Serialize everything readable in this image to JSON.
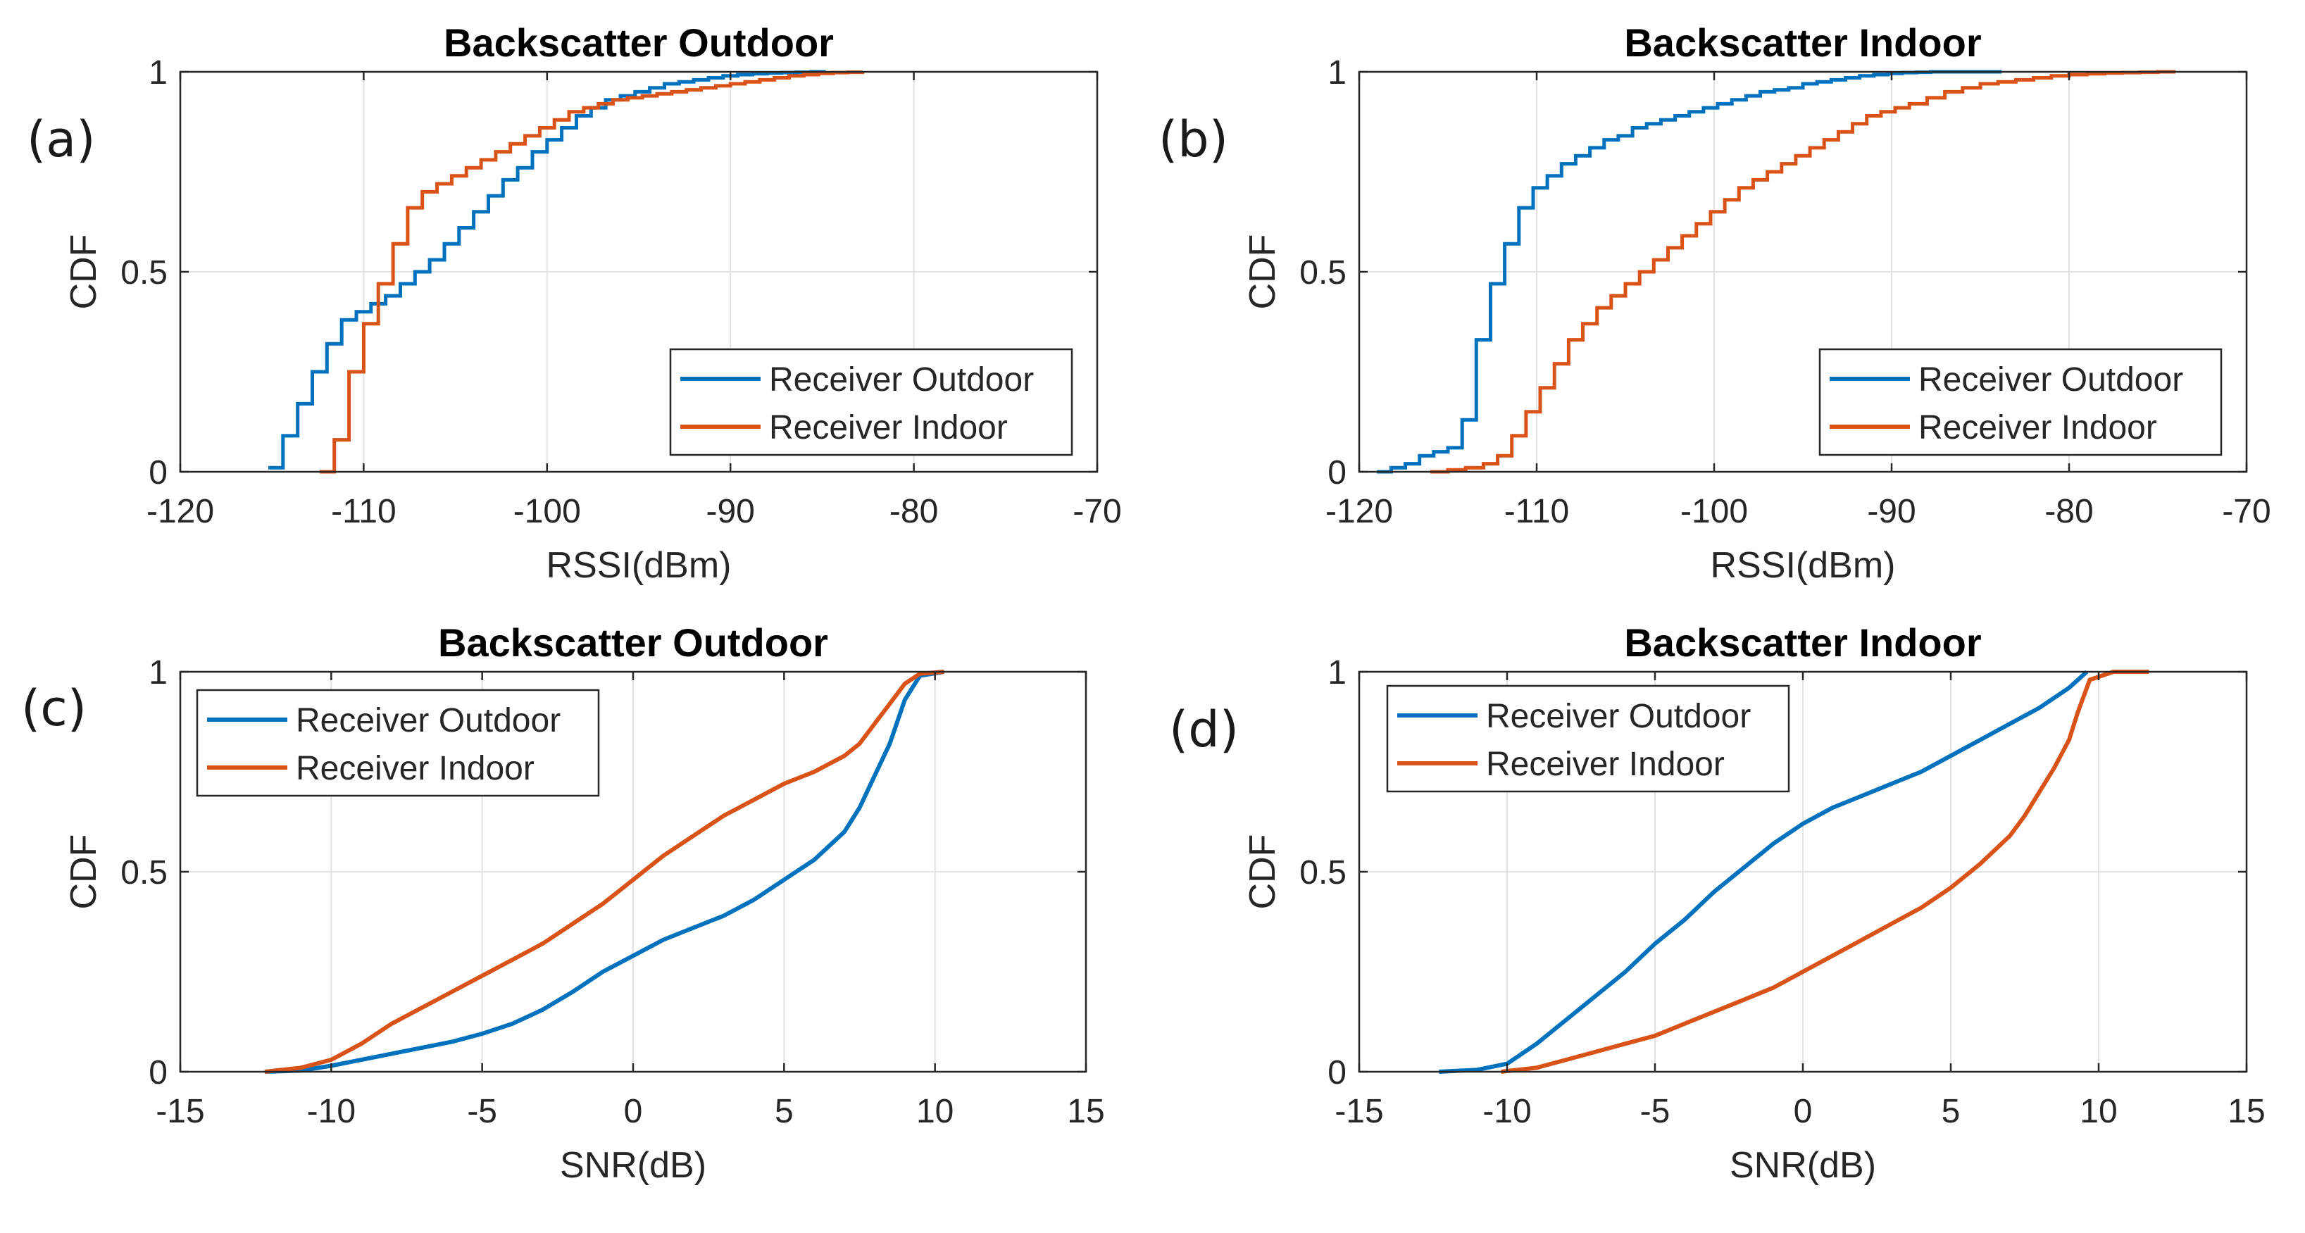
{
  "colors": {
    "outdoor": "#0072BD",
    "indoor": "#D95319"
  },
  "chart_data": [
    {
      "type": "line",
      "panel": "(a)",
      "title": "Backscatter Outdoor",
      "xlabel": "RSSI(dBm)",
      "ylabel": "CDF",
      "xlim": [
        -120,
        -70
      ],
      "ylim": [
        0,
        1
      ],
      "xticks": [
        -120,
        -110,
        -100,
        -90,
        -80,
        -70
      ],
      "xtick_labels": [
        "-120",
        "-110",
        "-100",
        "-90",
        "-80",
        "-70"
      ],
      "yticks": [
        0,
        0.5,
        1
      ],
      "ytick_labels": [
        "0",
        "0.5",
        "1"
      ],
      "legend": "bottom-right",
      "series": [
        {
          "name": "Receiver Outdoor",
          "color_key": "outdoor",
          "step": true,
          "x": [
            -115.2,
            -114.4,
            -113.6,
            -112.8,
            -112,
            -111.2,
            -110.4,
            -109.6,
            -108.8,
            -108,
            -107.2,
            -106.4,
            -105.6,
            -104.8,
            -104,
            -103.2,
            -102.4,
            -101.6,
            -100.8,
            -100,
            -99.2,
            -98.4,
            -97.6,
            -96.8,
            -96,
            -95.2,
            -94.4,
            -93.6,
            -92.8,
            -92,
            -91.2,
            -90.4,
            -89.6,
            -88.8,
            -88,
            -87.2,
            -86.4,
            -85.6,
            -84.8
          ],
          "y": [
            0.01,
            0.09,
            0.17,
            0.25,
            0.32,
            0.38,
            0.4,
            0.42,
            0.44,
            0.47,
            0.5,
            0.53,
            0.57,
            0.61,
            0.65,
            0.69,
            0.73,
            0.76,
            0.8,
            0.83,
            0.86,
            0.89,
            0.91,
            0.93,
            0.94,
            0.95,
            0.96,
            0.97,
            0.975,
            0.98,
            0.985,
            0.99,
            0.993,
            0.995,
            0.997,
            0.998,
            0.999,
            1.0,
            1.0
          ]
        },
        {
          "name": "Receiver Indoor",
          "color_key": "indoor",
          "step": true,
          "x": [
            -112.4,
            -111.6,
            -110.8,
            -110,
            -109.2,
            -108.4,
            -107.6,
            -106.8,
            -106,
            -105.2,
            -104.4,
            -103.6,
            -102.8,
            -102,
            -101.2,
            -100.4,
            -99.6,
            -98.8,
            -98,
            -97.2,
            -96.4,
            -95.6,
            -94.8,
            -94,
            -93.2,
            -92.4,
            -91.6,
            -90.8,
            -90,
            -89.2,
            -88.4,
            -87.6,
            -86.8,
            -86,
            -85.2,
            -84.4,
            -83.6,
            -82.8
          ],
          "y": [
            0.0,
            0.08,
            0.25,
            0.37,
            0.47,
            0.57,
            0.66,
            0.7,
            0.72,
            0.74,
            0.76,
            0.78,
            0.8,
            0.82,
            0.84,
            0.86,
            0.88,
            0.9,
            0.91,
            0.92,
            0.93,
            0.935,
            0.94,
            0.945,
            0.95,
            0.955,
            0.96,
            0.965,
            0.97,
            0.975,
            0.98,
            0.985,
            0.99,
            0.993,
            0.996,
            0.998,
            0.999,
            1.0
          ]
        }
      ]
    },
    {
      "type": "line",
      "panel": "(b)",
      "title": "Backscatter Indoor",
      "xlabel": "RSSI(dBm)",
      "ylabel": "CDF",
      "xlim": [
        -120,
        -70
      ],
      "ylim": [
        0,
        1
      ],
      "xticks": [
        -120,
        -110,
        -100,
        -90,
        -80,
        -70
      ],
      "xtick_labels": [
        "-120",
        "-110",
        "-100",
        "-90",
        "-80",
        "-70"
      ],
      "yticks": [
        0,
        0.5,
        1
      ],
      "ytick_labels": [
        "0",
        "0.5",
        "1"
      ],
      "legend": "bottom-right",
      "series": [
        {
          "name": "Receiver Outdoor",
          "color_key": "outdoor",
          "step": true,
          "x": [
            -119,
            -118.2,
            -117.4,
            -116.6,
            -115.8,
            -115,
            -114.2,
            -113.4,
            -112.6,
            -111.8,
            -111,
            -110.2,
            -109.4,
            -108.6,
            -107.8,
            -107,
            -106.2,
            -105.4,
            -104.6,
            -103.8,
            -103,
            -102.2,
            -101.4,
            -100.6,
            -99.8,
            -99,
            -98.2,
            -97.4,
            -96.6,
            -95.8,
            -95,
            -94.2,
            -93.4,
            -92.6,
            -91.8,
            -91,
            -90.2,
            -89.4,
            -88.6,
            -87.8,
            -87,
            -86.2,
            -85.4,
            -84.6,
            -83.8
          ],
          "y": [
            0.0,
            0.01,
            0.02,
            0.04,
            0.05,
            0.06,
            0.13,
            0.33,
            0.47,
            0.57,
            0.66,
            0.71,
            0.74,
            0.77,
            0.79,
            0.81,
            0.83,
            0.84,
            0.86,
            0.87,
            0.88,
            0.89,
            0.9,
            0.91,
            0.92,
            0.93,
            0.94,
            0.95,
            0.955,
            0.96,
            0.97,
            0.975,
            0.98,
            0.985,
            0.99,
            0.993,
            0.996,
            0.998,
            0.999,
            1.0,
            1.0,
            1.0,
            1.0,
            1.0,
            1.0
          ]
        },
        {
          "name": "Receiver Indoor",
          "color_key": "indoor",
          "step": true,
          "x": [
            -116,
            -115,
            -114,
            -113,
            -112.2,
            -111.4,
            -110.6,
            -109.8,
            -109,
            -108.2,
            -107.4,
            -106.6,
            -105.8,
            -105,
            -104.2,
            -103.4,
            -102.6,
            -101.8,
            -101,
            -100.2,
            -99.4,
            -98.6,
            -97.8,
            -97,
            -96.2,
            -95.4,
            -94.6,
            -93.8,
            -93,
            -92.2,
            -91.4,
            -90.6,
            -89.8,
            -89,
            -88,
            -87,
            -86,
            -85,
            -84,
            -83,
            -82,
            -81,
            -80,
            -79,
            -78,
            -77,
            -76,
            -75,
            -74
          ],
          "y": [
            0.0,
            0.005,
            0.01,
            0.02,
            0.04,
            0.09,
            0.15,
            0.21,
            0.27,
            0.33,
            0.37,
            0.41,
            0.44,
            0.47,
            0.5,
            0.53,
            0.56,
            0.59,
            0.62,
            0.65,
            0.68,
            0.71,
            0.73,
            0.75,
            0.77,
            0.79,
            0.81,
            0.83,
            0.85,
            0.87,
            0.89,
            0.9,
            0.91,
            0.92,
            0.935,
            0.95,
            0.96,
            0.97,
            0.975,
            0.98,
            0.985,
            0.99,
            0.993,
            0.995,
            0.997,
            0.998,
            0.999,
            1.0,
            1.0
          ]
        }
      ]
    },
    {
      "type": "line",
      "panel": "(c)",
      "title": "Backscatter Outdoor",
      "xlabel": "SNR(dB)",
      "ylabel": "CDF",
      "xlim": [
        -15,
        15
      ],
      "ylim": [
        0,
        1
      ],
      "xticks": [
        -15,
        -10,
        -5,
        0,
        5,
        10,
        15
      ],
      "xtick_labels": [
        "-15",
        "-10",
        "-5",
        "0",
        "5",
        "10",
        "15"
      ],
      "yticks": [
        0,
        0.5,
        1
      ],
      "ytick_labels": [
        "0",
        "0.5",
        "1"
      ],
      "legend": "top-left",
      "series": [
        {
          "name": "Receiver Outdoor",
          "color_key": "outdoor",
          "step": false,
          "x": [
            -12.2,
            -11,
            -10,
            -9,
            -8,
            -7,
            -6,
            -5,
            -4,
            -3,
            -2,
            -1,
            0,
            1,
            2,
            3,
            4,
            5,
            6,
            7,
            7.5,
            8,
            8.5,
            9,
            9.5,
            10.3
          ],
          "y": [
            0.0,
            0.003,
            0.015,
            0.03,
            0.045,
            0.06,
            0.075,
            0.095,
            0.12,
            0.155,
            0.2,
            0.25,
            0.29,
            0.33,
            0.36,
            0.39,
            0.43,
            0.48,
            0.53,
            0.6,
            0.66,
            0.74,
            0.82,
            0.93,
            0.99,
            1.0
          ]
        },
        {
          "name": "Receiver Indoor",
          "color_key": "indoor",
          "step": false,
          "x": [
            -12.2,
            -11,
            -10,
            -9,
            -8,
            -7,
            -6,
            -5,
            -4,
            -3,
            -2,
            -1,
            0,
            1,
            2,
            3,
            4,
            5,
            6,
            7,
            7.5,
            8,
            8.5,
            9,
            9.5,
            10.3
          ],
          "y": [
            0.0,
            0.01,
            0.03,
            0.07,
            0.12,
            0.16,
            0.2,
            0.24,
            0.28,
            0.32,
            0.37,
            0.42,
            0.48,
            0.54,
            0.59,
            0.64,
            0.68,
            0.72,
            0.75,
            0.79,
            0.82,
            0.87,
            0.92,
            0.97,
            0.995,
            1.0
          ]
        }
      ]
    },
    {
      "type": "line",
      "panel": "(d)",
      "title": "Backscatter Indoor",
      "xlabel": "SNR(dB)",
      "ylabel": "CDF",
      "xlim": [
        -15,
        15
      ],
      "ylim": [
        0,
        1
      ],
      "xticks": [
        -15,
        -10,
        -5,
        0,
        5,
        10,
        15
      ],
      "xtick_labels": [
        "-15",
        "-10",
        "-5",
        "0",
        "5",
        "10",
        "15"
      ],
      "yticks": [
        0,
        0.5,
        1
      ],
      "ytick_labels": [
        "0",
        "0.5",
        "1"
      ],
      "legend": "top-left",
      "series": [
        {
          "name": "Receiver Outdoor",
          "color_key": "outdoor",
          "step": false,
          "x": [
            -12.3,
            -11,
            -10,
            -9,
            -8,
            -7,
            -6,
            -5,
            -4,
            -3,
            -2,
            -1,
            0,
            1,
            2,
            3,
            4,
            5,
            6,
            7,
            8,
            9,
            9.6
          ],
          "y": [
            0.0,
            0.005,
            0.02,
            0.07,
            0.13,
            0.19,
            0.25,
            0.32,
            0.38,
            0.45,
            0.51,
            0.57,
            0.62,
            0.66,
            0.69,
            0.72,
            0.75,
            0.79,
            0.83,
            0.87,
            0.91,
            0.96,
            1.0
          ]
        },
        {
          "name": "Receiver Indoor",
          "color_key": "indoor",
          "step": false,
          "x": [
            -10.2,
            -9,
            -8,
            -7,
            -6,
            -5,
            -4,
            -3,
            -2,
            -1,
            0,
            1,
            2,
            3,
            4,
            5,
            6,
            7,
            7.5,
            8,
            8.5,
            9,
            9.3,
            9.7,
            10.5,
            11.7
          ],
          "y": [
            0.0,
            0.01,
            0.03,
            0.05,
            0.07,
            0.09,
            0.12,
            0.15,
            0.18,
            0.21,
            0.25,
            0.29,
            0.33,
            0.37,
            0.41,
            0.46,
            0.52,
            0.59,
            0.64,
            0.7,
            0.76,
            0.83,
            0.9,
            0.98,
            1.0,
            1.0
          ]
        }
      ]
    }
  ]
}
